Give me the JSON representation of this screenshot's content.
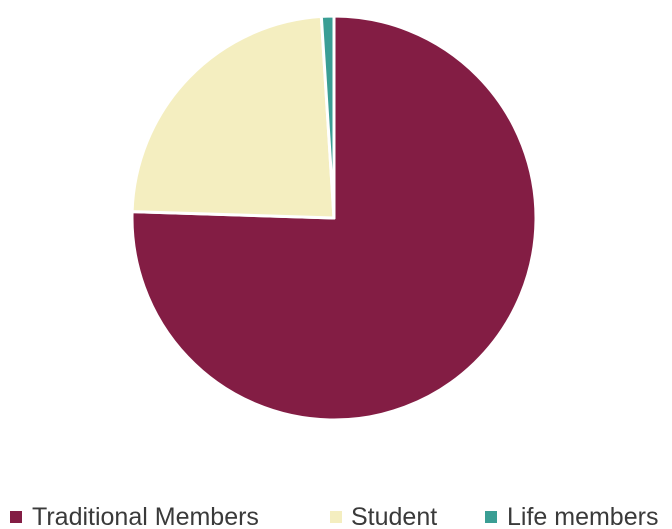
{
  "chart_data": {
    "type": "pie",
    "title": "",
    "slices": [
      {
        "label": "Traditional Members",
        "value": 75.5,
        "color": "#831D44"
      },
      {
        "label": "Student",
        "value": 23.5,
        "color": "#F4EEC0"
      },
      {
        "label": "Life members",
        "value": 1.0,
        "color": "#3A9E94"
      }
    ],
    "legend": {
      "position": "bottom",
      "entries": [
        "Traditional Members",
        "Student",
        "Life members"
      ]
    }
  }
}
